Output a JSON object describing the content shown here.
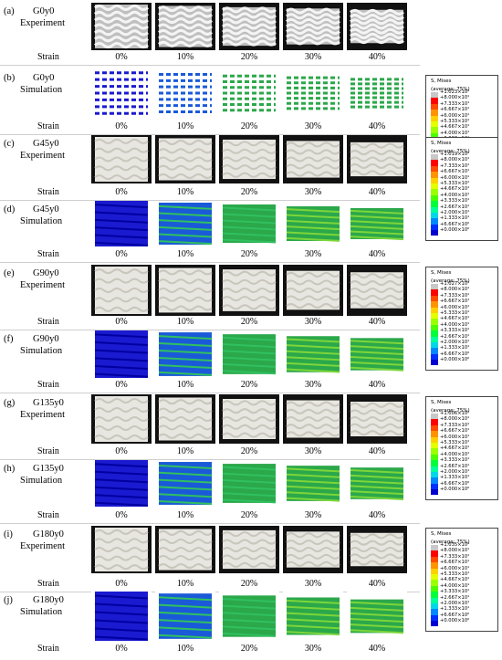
{
  "groups": [
    {
      "exp": {
        "tag": "(a)",
        "name": "G0y0",
        "kind": "Experiment"
      },
      "sim": {
        "tag": "(b)",
        "name": "G0y0",
        "kind": "Simulation"
      },
      "max": "+1.023×10²"
    },
    {
      "exp": {
        "tag": "(c)",
        "name": "G45y0",
        "kind": "Experiment"
      },
      "sim": {
        "tag": "(d)",
        "name": "G45y0",
        "kind": "Simulation"
      },
      "max": "+1.019×10²"
    },
    {
      "exp": {
        "tag": "(e)",
        "name": "G90y0",
        "kind": "Experiment"
      },
      "sim": {
        "tag": "(f)",
        "name": "G90y0",
        "kind": "Simulation"
      },
      "max": "+1.027×10²"
    },
    {
      "exp": {
        "tag": "(g)",
        "name": "G135y0",
        "kind": "Experiment"
      },
      "sim": {
        "tag": "(h)",
        "name": "G135y0",
        "kind": "Simulation"
      },
      "max": "+1.006×10²"
    },
    {
      "exp": {
        "tag": "(i)",
        "name": "G180y0",
        "kind": "Experiment"
      },
      "sim": {
        "tag": "(j)",
        "name": "G180y0",
        "kind": "Simulation"
      },
      "max": "+1.035×10²"
    }
  ],
  "strain_label": "Strain",
  "strains": [
    "0%",
    "10%",
    "20%",
    "30%",
    "40%"
  ],
  "legend": {
    "title": "S, Mises",
    "subtitle": "(average: 75%)",
    "values": [
      "+8.000×10¹",
      "+7.333×10¹",
      "+6.667×10¹",
      "+6.000×10¹",
      "+5.333×10¹",
      "+4.667×10¹",
      "+4.000×10¹",
      "+3.333×10¹",
      "+2.667×10¹",
      "+2.000×10¹",
      "+1.333×10¹",
      "+6.667×10⁰",
      "+0.000×10⁰"
    ],
    "colors": [
      "#c8c8c8",
      "#ff0000",
      "#ff4a00",
      "#ff9400",
      "#ffd000",
      "#e4ff00",
      "#9cff00",
      "#4cff00",
      "#00ff3a",
      "#00ff9a",
      "#00d8e8",
      "#0088ff",
      "#0030ff",
      "#0000d0"
    ]
  }
}
